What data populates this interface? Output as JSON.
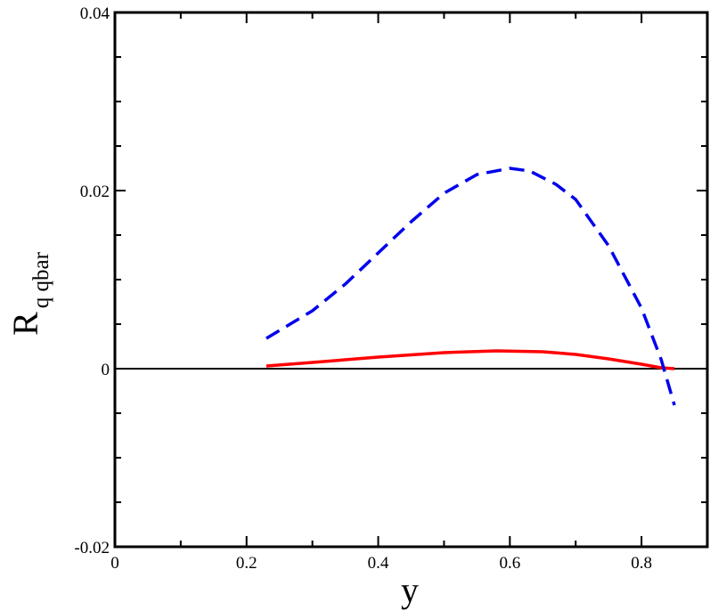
{
  "chart_data": {
    "type": "line",
    "title": "",
    "xlabel": "y",
    "ylabel_main": "R",
    "ylabel_sub": "q qbar",
    "xlim": [
      0,
      0.9
    ],
    "ylim": [
      -0.02,
      0.04
    ],
    "x_major_ticks": [
      0,
      0.2,
      0.4,
      0.6,
      0.8
    ],
    "x_tick_labels": [
      "0",
      "0.2",
      "0.4",
      "0.6",
      "0.8"
    ],
    "y_major_ticks": [
      -0.02,
      0,
      0.02,
      0.04
    ],
    "y_tick_labels": [
      "-0.02",
      "0",
      "0.02",
      "0.04"
    ],
    "x_minor_step": 0.1,
    "y_minor_step": 0.005,
    "grid": false,
    "zero_line": true,
    "series": [
      {
        "color": "#ff0000",
        "style": "solid",
        "x": [
          0.23,
          0.3,
          0.4,
          0.5,
          0.58,
          0.65,
          0.7,
          0.75,
          0.8,
          0.83,
          0.85
        ],
        "y": [
          0.0003,
          0.0007,
          0.0013,
          0.0018,
          0.002,
          0.0019,
          0.0016,
          0.0011,
          0.0005,
          0.0001,
          0.0
        ]
      },
      {
        "color": "#0000ee",
        "style": "dashed",
        "x": [
          0.23,
          0.3,
          0.35,
          0.4,
          0.45,
          0.5,
          0.55,
          0.6,
          0.63,
          0.67,
          0.7,
          0.75,
          0.8,
          0.83,
          0.85
        ],
        "y": [
          0.0034,
          0.0065,
          0.0095,
          0.013,
          0.0165,
          0.0197,
          0.0218,
          0.0225,
          0.0222,
          0.0207,
          0.019,
          0.0138,
          0.0068,
          0.001,
          -0.0041
        ]
      }
    ]
  }
}
